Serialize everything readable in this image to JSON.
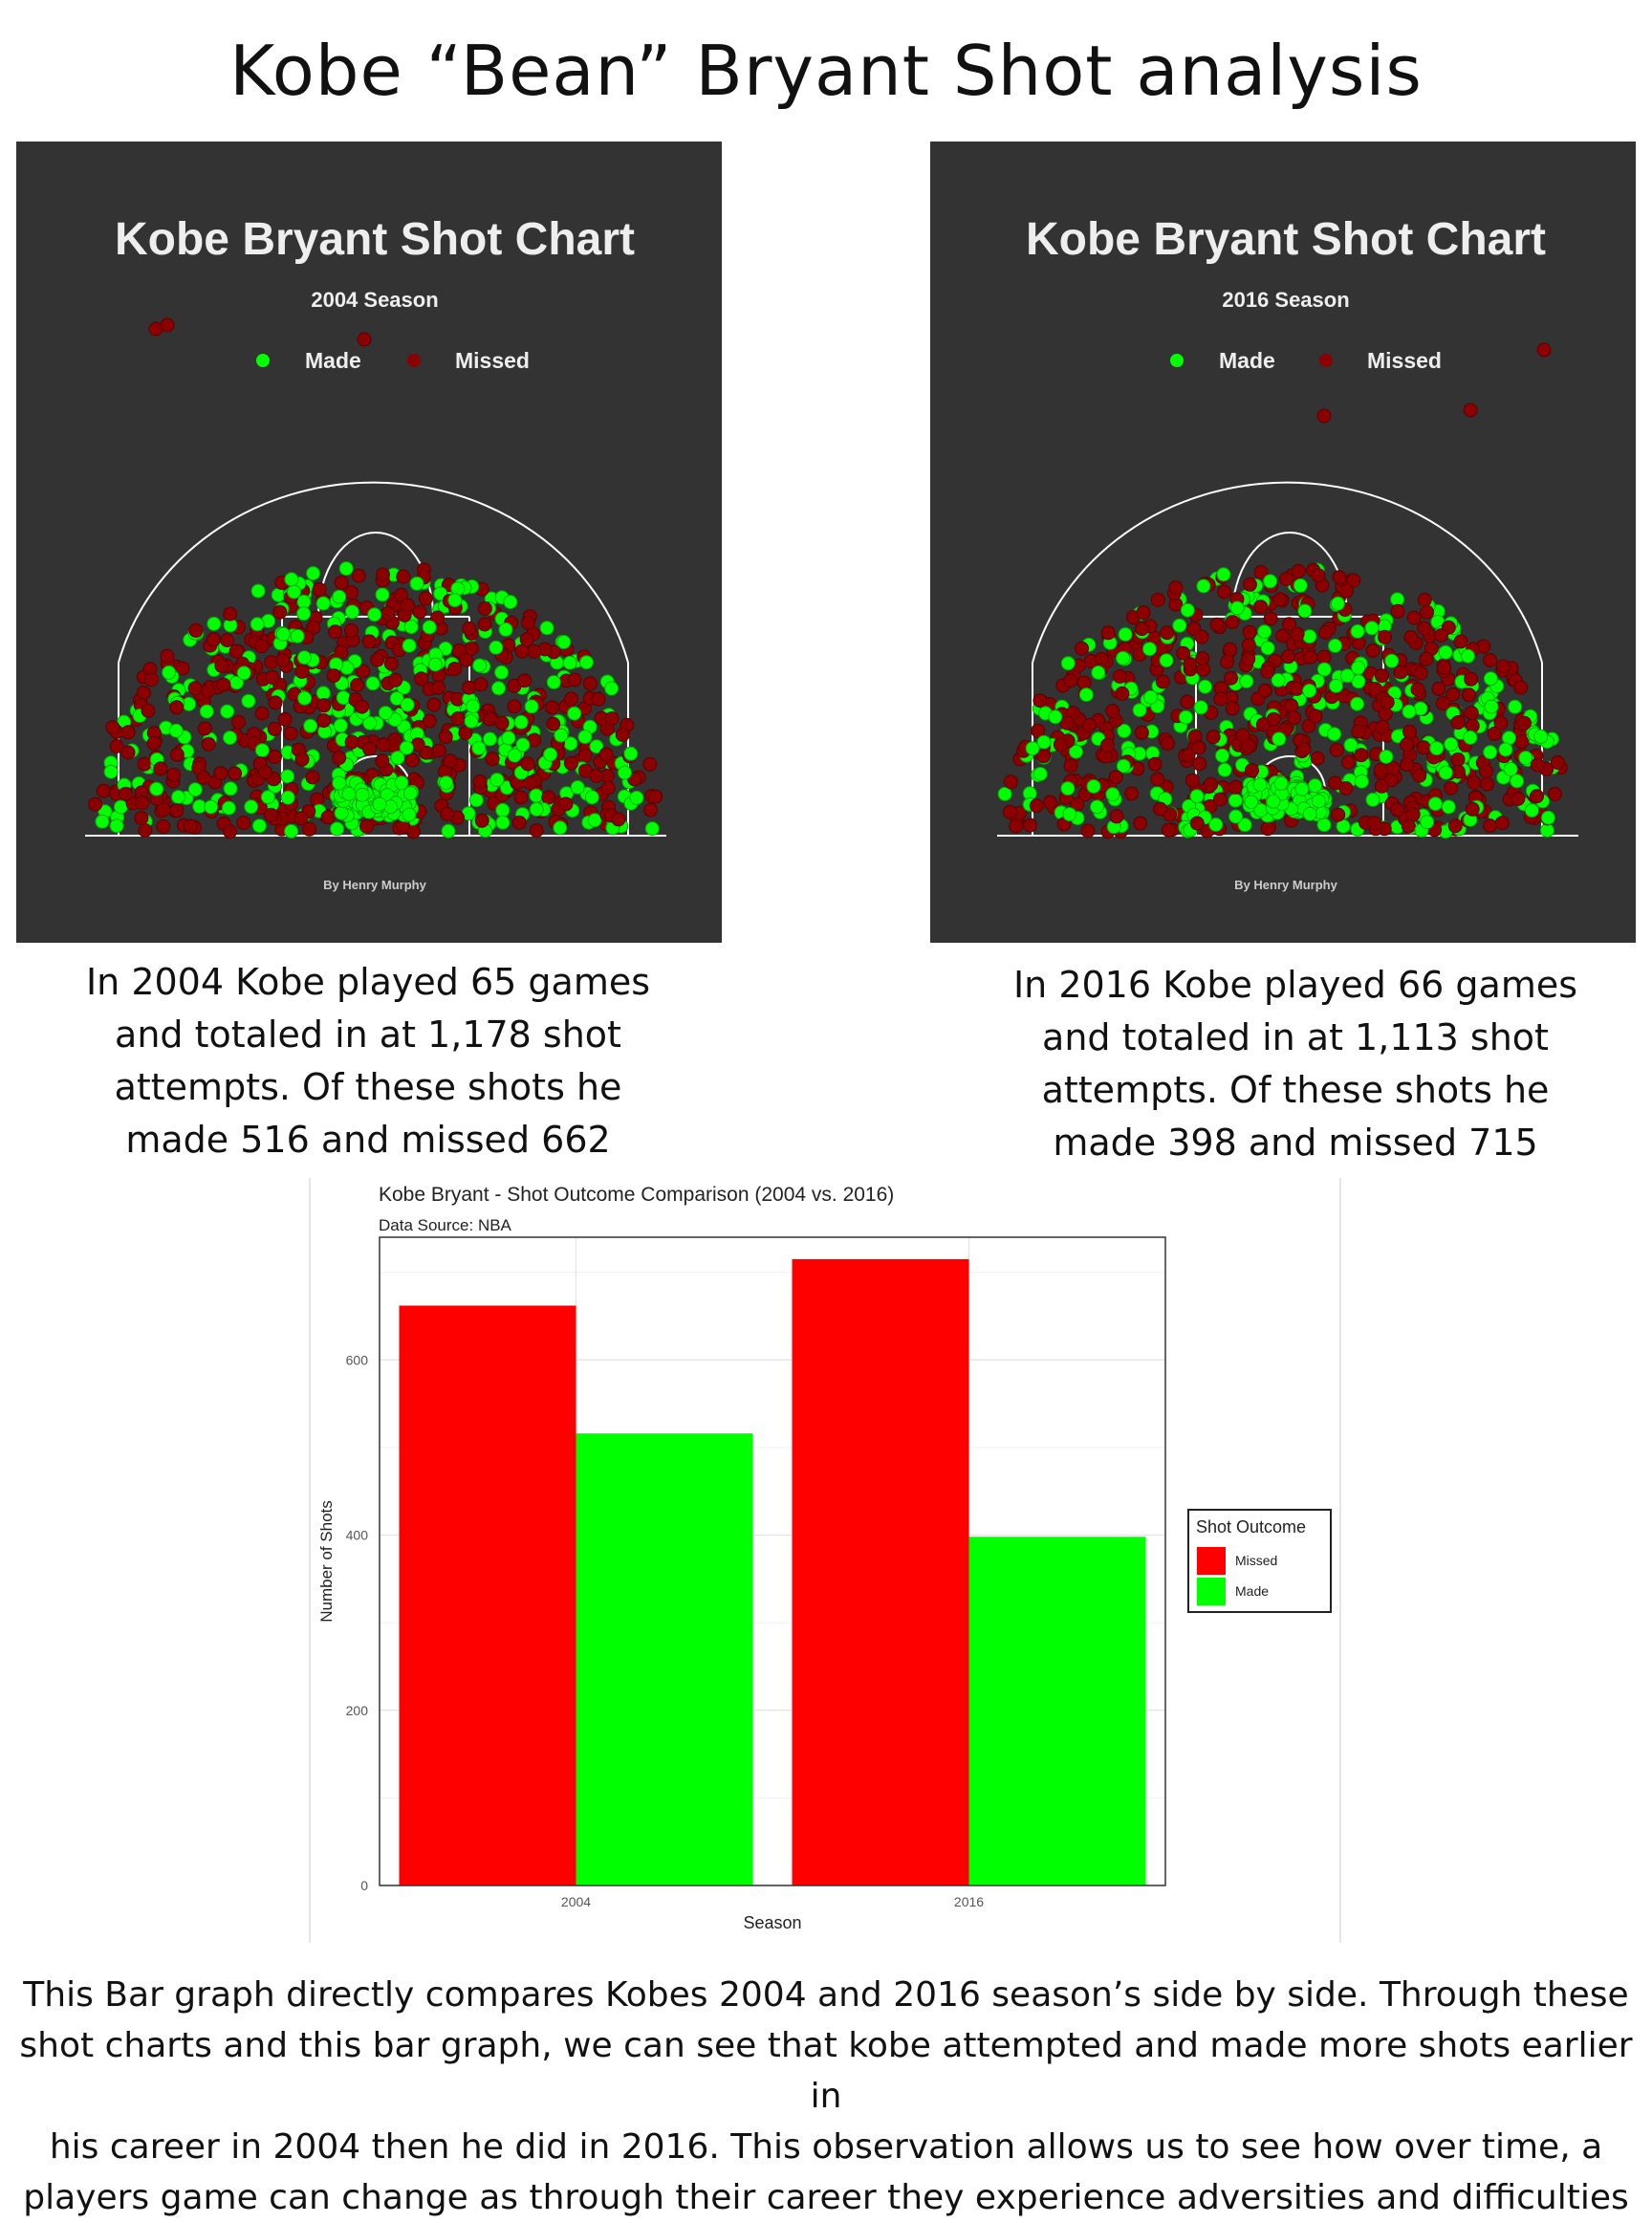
{
  "page_title": "Kobe “Bean” Bryant Shot analysis",
  "colors": {
    "made": "#00ff00",
    "missed": "#8b0000",
    "panel_bg": "#333333"
  },
  "shot_charts": [
    {
      "title": "Kobe Bryant Shot Chart",
      "subtitle": "2004 Season",
      "legend_made": "Made",
      "legend_missed": "Missed",
      "credit": "By Henry Murphy"
    },
    {
      "title": "Kobe Bryant Shot Chart",
      "subtitle": "2016 Season",
      "legend_made": "Made",
      "legend_missed": "Missed",
      "credit": "By Henry Murphy"
    }
  ],
  "captions": {
    "c2004": [
      "In 2004 Kobe played 65 games",
      "and totaled in at 1,178 shot",
      "attempts. Of these shots he",
      "made 516 and missed 662"
    ],
    "c2016": [
      "In 2016 Kobe played 66 games",
      "and totaled in at 1,113 shot",
      "attempts. Of these shots he",
      "made 398 and missed 715"
    ]
  },
  "chart_data": {
    "type": "bar",
    "title": "Kobe Bryant - Shot Outcome Comparison (2004 vs. 2016)",
    "subtitle": "Data Source: NBA",
    "xlabel": "Season",
    "ylabel": "Number of Shots",
    "categories": [
      "2004",
      "2016"
    ],
    "series": [
      {
        "name": "Missed",
        "values": [
          662,
          715
        ],
        "color": "#ff0000"
      },
      {
        "name": "Made",
        "values": [
          516,
          398
        ],
        "color": "#00ff00"
      }
    ],
    "ylim": [
      0,
      740
    ],
    "yticks": [
      0,
      200,
      400,
      600
    ],
    "legend_title": "Shot Outcome",
    "legend_position": "right",
    "grid": true
  },
  "summary": [
    "This Bar graph directly compares Kobes 2004 and 2016 season’s side by side. Through these",
    "shot charts and this bar graph, we can see that kobe attempted and made more shots earlier in",
    "his career in 2004 then he did in 2016. This observation allows us to see how over time, a",
    "players game can change as through their career they experience adversities and difficulties"
  ]
}
